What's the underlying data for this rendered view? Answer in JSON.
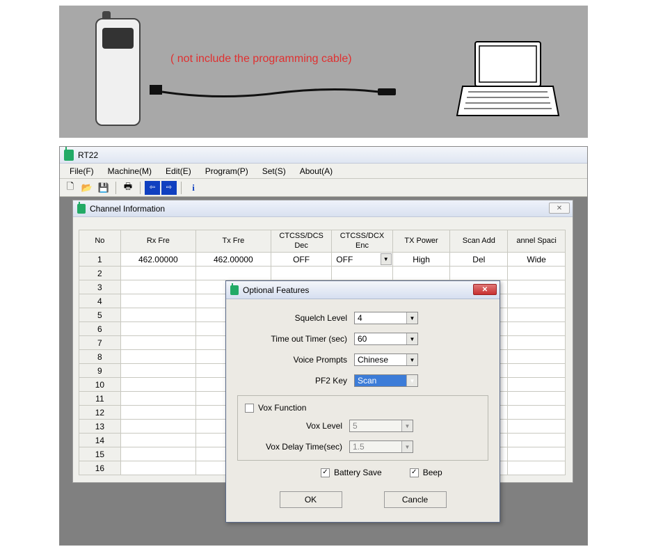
{
  "illustration": {
    "note": "( not include the programming cable)",
    "note_color": "#e03030",
    "bg": "#a8a8a8"
  },
  "app": {
    "title": "RT22",
    "menus": [
      "File(F)",
      "Machine(M)",
      "Edit(E)",
      "Program(P)",
      "Set(S)",
      "About(A)"
    ],
    "toolbar_icons": [
      "new",
      "open",
      "save",
      "sep",
      "print",
      "sep",
      "read",
      "write",
      "sep",
      "info"
    ]
  },
  "channel_window": {
    "title": "Channel Information",
    "columns": [
      "No",
      "Rx Fre",
      "Tx Fre",
      "CTCSS/DCS Dec",
      "CTCSS/DCX Enc",
      "TX Power",
      "Scan Add",
      "annel Spaci"
    ],
    "rows": 16,
    "data_row": {
      "no": "1",
      "rx": "462.00000",
      "tx": "462.00000",
      "dec": "OFF",
      "enc": "OFF",
      "power": "High",
      "scan": "Del",
      "space": "Wide"
    }
  },
  "dialog": {
    "title": "Optional Features",
    "squelch_label": "Squelch Level",
    "squelch_value": "4",
    "timeout_label": "Time out Timer (sec)",
    "timeout_value": "60",
    "voice_label": "Voice Prompts",
    "voice_value": "Chinese",
    "pf2_label": "PF2 Key",
    "pf2_value": "Scan",
    "vox_function_label": "Vox Function",
    "vox_function_checked": false,
    "vox_level_label": "Vox Level",
    "vox_level_value": "5",
    "vox_delay_label": "Vox Delay Time(sec)",
    "vox_delay_value": "1.5",
    "battery_save_label": "Battery Save",
    "battery_save_checked": true,
    "beep_label": "Beep",
    "beep_checked": true,
    "ok_label": "OK",
    "cancel_label": "Cancle"
  }
}
